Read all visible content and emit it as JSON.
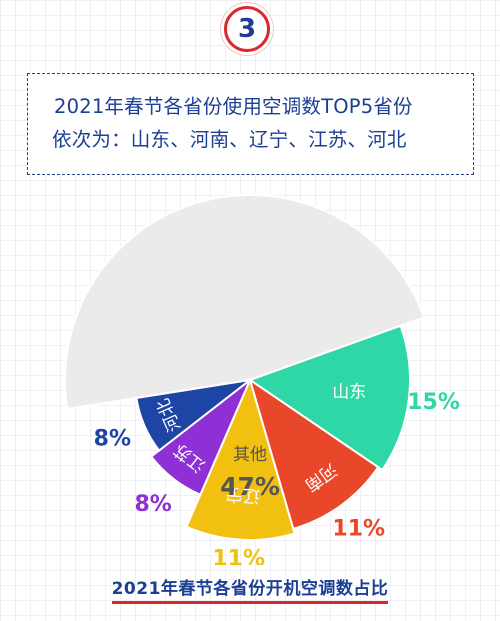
{
  "badge": {
    "number": "3"
  },
  "intro": {
    "line1": "2021年春节各省份使用空调数TOP5省份",
    "line2": "依次为：山东、河南、辽宁、江苏、河北"
  },
  "chart_data": {
    "type": "pie",
    "title": "2021年春节各省份开机空调数占比",
    "slices": [
      {
        "label": "其他",
        "value": 47,
        "value_label": "47%",
        "color": "#ebebeb"
      },
      {
        "label": "山东",
        "value": 15,
        "value_label": "15%",
        "color": "#2fd7a6"
      },
      {
        "label": "河南",
        "value": 11,
        "value_label": "11%",
        "color": "#e8472a"
      },
      {
        "label": "辽宁",
        "value": 11,
        "value_label": "11%",
        "color": "#f2c011"
      },
      {
        "label": "江苏",
        "value": 8,
        "value_label": "8%",
        "color": "#8f2fd6"
      },
      {
        "label": "河北",
        "value": 8,
        "value_label": "8%",
        "color": "#1d45a6"
      }
    ]
  },
  "footer": {
    "caption": "2021年春节各省份开机空调数占比"
  }
}
